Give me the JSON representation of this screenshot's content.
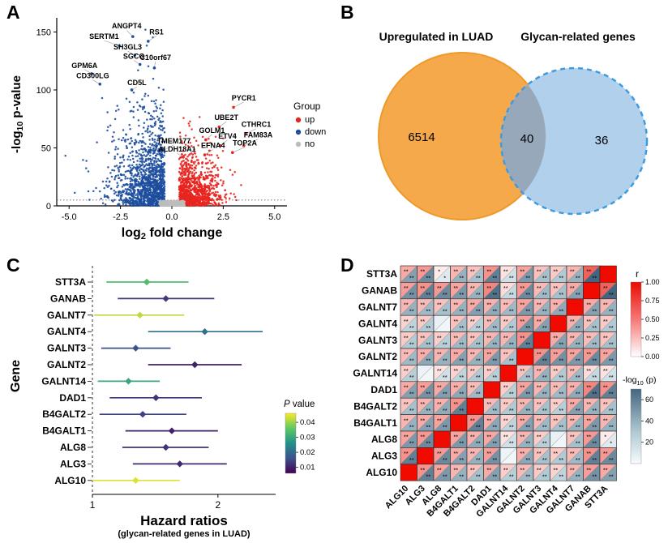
{
  "panel_labels": {
    "a": "A",
    "b": "B",
    "c": "C",
    "d": "D"
  },
  "chart_data": [
    {
      "id": "A",
      "type": "scatter",
      "subtype": "volcano",
      "xlabel": {
        "pre": "log",
        "sub": "2",
        "post": " fold change"
      },
      "ylabel": {
        "pre": "-log",
        "sub": "10",
        "post": " p-value"
      },
      "xlim": [
        -5.6,
        5.6
      ],
      "ylim": [
        0,
        158
      ],
      "x_ticks": [
        {
          "v": -5,
          "label": "-5.0"
        },
        {
          "v": -2.5,
          "label": "-2.5"
        },
        {
          "v": 0,
          "label": "0.0"
        },
        {
          "v": 2.5,
          "label": "2.5"
        },
        {
          "v": 5,
          "label": "5.0"
        }
      ],
      "y_ticks": [
        0,
        50,
        100,
        150
      ],
      "threshold_y": 5,
      "legend": {
        "title": "Group",
        "items": [
          {
            "label": "up",
            "color": "#E8251F"
          },
          {
            "label": "down",
            "color": "#1D4E9E"
          },
          {
            "label": "no",
            "color": "#BDBDBD"
          }
        ]
      },
      "colors": {
        "up": "#E8251F",
        "down": "#1D4E9E",
        "no": "#BDBDBD"
      },
      "generator": {
        "seed": 1337,
        "n_down": 1400,
        "n_up": 1050,
        "n_no": 380
      },
      "labeled_genes": [
        {
          "name": "ANGPT4",
          "x": -1.9,
          "y": 146,
          "lx": -2.2,
          "ly": 153,
          "group": "down"
        },
        {
          "name": "RS1",
          "x": -1.15,
          "y": 142,
          "lx": -0.75,
          "ly": 148,
          "group": "down"
        },
        {
          "name": "SERTM1",
          "x": -2.55,
          "y": 138,
          "lx": -3.3,
          "ly": 144,
          "group": "down"
        },
        {
          "name": "SH3GL3",
          "x": -1.8,
          "y": 130,
          "lx": -2.15,
          "ly": 135,
          "group": "down"
        },
        {
          "name": "SGCG",
          "x": -1.55,
          "y": 122,
          "lx": -1.85,
          "ly": 127,
          "group": "down"
        },
        {
          "name": "GPM6A",
          "x": -3.9,
          "y": 114,
          "lx": -4.25,
          "ly": 119,
          "group": "down"
        },
        {
          "name": "C10orf67",
          "x": -0.85,
          "y": 119,
          "lx": -0.8,
          "ly": 126,
          "group": "down"
        },
        {
          "name": "CD300LG",
          "x": -3.5,
          "y": 105,
          "lx": -3.85,
          "ly": 110,
          "group": "down"
        },
        {
          "name": "CD5L",
          "x": -1.95,
          "y": 100,
          "lx": -1.7,
          "ly": 104,
          "group": "down"
        },
        {
          "name": "PYCR1",
          "x": 3.0,
          "y": 85,
          "lx": 3.5,
          "ly": 91,
          "group": "up"
        },
        {
          "name": "UBE2T",
          "x": 2.3,
          "y": 68,
          "lx": 2.65,
          "ly": 74,
          "group": "up"
        },
        {
          "name": "CTHRC1",
          "x": 3.6,
          "y": 62,
          "lx": 4.1,
          "ly": 68,
          "group": "up"
        },
        {
          "name": "GOLM1",
          "x": 1.65,
          "y": 57,
          "lx": 1.95,
          "ly": 63,
          "group": "up"
        },
        {
          "name": "ETV4",
          "x": 2.35,
          "y": 52,
          "lx": 2.7,
          "ly": 58,
          "group": "up"
        },
        {
          "name": "FAM83A",
          "x": 3.5,
          "y": 52,
          "lx": 4.2,
          "ly": 59,
          "group": "up"
        },
        {
          "name": "TMEM177",
          "x": -0.4,
          "y": 48,
          "lx": 0.1,
          "ly": 54,
          "group": "down"
        },
        {
          "name": "ALDH18A1",
          "x": 0.55,
          "y": 42,
          "lx": 0.25,
          "ly": 47,
          "group": "up"
        },
        {
          "name": "EFNA4",
          "x": 1.6,
          "y": 44,
          "lx": 2.0,
          "ly": 50,
          "group": "up"
        },
        {
          "name": "TOP2A",
          "x": 2.95,
          "y": 46,
          "lx": 3.55,
          "ly": 52,
          "group": "up"
        }
      ]
    },
    {
      "id": "B",
      "type": "venn",
      "sets": [
        {
          "label": "Upregulated in LUAD",
          "count": "6514",
          "fill": "#F6A94B",
          "stroke": "#EE9A2B",
          "label_color": "#F59C1F",
          "dashed": false
        },
        {
          "label": "Glycan-related genes",
          "count": "36",
          "fill": "#ADCDEB",
          "stroke": "#3D9BE0",
          "label_color": "#3FA0E8",
          "dashed": true
        }
      ],
      "overlap": {
        "count": "40",
        "fill": "#97A8BB"
      }
    },
    {
      "id": "C",
      "type": "forest",
      "ylabel": "Gene",
      "xlabel": "Hazard ratios",
      "xsub": "(glycan-related genes in LUAD)",
      "xlim": [
        1,
        2.75
      ],
      "x_ticks": [
        1,
        2
      ],
      "ref_line": 1,
      "legend": {
        "title_italic": "P",
        "title_rest": " value",
        "ticks": [
          "0.04",
          "0.03",
          "0.02",
          "0.01"
        ],
        "domain": [
          0.006,
          0.046
        ]
      },
      "rows": [
        {
          "gene": "STT3A",
          "hr": 1.35,
          "lo": 1.08,
          "hi": 1.7,
          "p": 0.034
        },
        {
          "gene": "GANAB",
          "hr": 1.5,
          "lo": 1.15,
          "hi": 1.96,
          "p": 0.013
        },
        {
          "gene": "GALNT7",
          "hr": 1.3,
          "lo": 1.01,
          "hi": 1.66,
          "p": 0.042
        },
        {
          "gene": "GALNT4",
          "hr": 1.86,
          "lo": 1.36,
          "hi": 2.56,
          "p": 0.021
        },
        {
          "gene": "GALNT3",
          "hr": 1.27,
          "lo": 1.05,
          "hi": 1.54,
          "p": 0.016
        },
        {
          "gene": "GALNT2",
          "hr": 1.76,
          "lo": 1.36,
          "hi": 2.28,
          "p": 0.01
        },
        {
          "gene": "GALNT14",
          "hr": 1.22,
          "lo": 1.03,
          "hi": 1.45,
          "p": 0.03
        },
        {
          "gene": "DAD1",
          "hr": 1.42,
          "lo": 1.1,
          "hi": 1.83,
          "p": 0.012
        },
        {
          "gene": "B4GALT2",
          "hr": 1.32,
          "lo": 1.04,
          "hi": 1.68,
          "p": 0.014
        },
        {
          "gene": "B4GALT1",
          "hr": 1.55,
          "lo": 1.2,
          "hi": 2.0,
          "p": 0.01
        },
        {
          "gene": "ALG8",
          "hr": 1.5,
          "lo": 1.18,
          "hi": 1.9,
          "p": 0.012
        },
        {
          "gene": "ALG3",
          "hr": 1.62,
          "lo": 1.25,
          "hi": 2.1,
          "p": 0.011
        },
        {
          "gene": "ALG10",
          "hr": 1.27,
          "lo": 1.0,
          "hi": 1.62,
          "p": 0.044
        }
      ]
    },
    {
      "id": "D",
      "type": "heatmap",
      "subtype": "split-correlation",
      "genes_x": [
        "ALG10",
        "ALG3",
        "ALG8",
        "B4GALT1",
        "B4GALT2",
        "DAD1",
        "GALNT14",
        "GALNT2",
        "GALNT3",
        "GALNT4",
        "GALNT7",
        "GANAB",
        "STT3A"
      ],
      "genes_y": [
        "STT3A",
        "GANAB",
        "GALNT7",
        "GALNT4",
        "GALNT3",
        "GALNT2",
        "GALNT14",
        "DAD1",
        "B4GALT2",
        "B4GALT1",
        "ALG8",
        "ALG3",
        "ALG10"
      ],
      "r_legend": {
        "title": "r",
        "ticks": [
          "1.00",
          "0.75",
          "0.50",
          "0.25",
          "0.00"
        ],
        "domain": [
          0,
          1
        ]
      },
      "p_legend": {
        "title_pre": "-log",
        "title_sub": "10",
        "title_post": " (p)",
        "ticks": [
          60,
          40,
          20
        ],
        "domain": [
          0,
          70
        ]
      },
      "r_matrix": [
        [
          1.0,
          0.45,
          0.38,
          0.3,
          0.25,
          0.35,
          0.2,
          0.28,
          0.22,
          0.18,
          0.3,
          0.4,
          0.35
        ],
        [
          0.45,
          1.0,
          0.42,
          0.35,
          0.3,
          0.4,
          -0.05,
          0.33,
          0.25,
          0.22,
          0.28,
          0.45,
          0.42
        ],
        [
          0.38,
          0.42,
          1.0,
          0.38,
          0.32,
          0.36,
          0.12,
          0.3,
          0.2,
          -0.06,
          0.25,
          0.42,
          0.08
        ],
        [
          0.3,
          0.35,
          0.38,
          1.0,
          0.45,
          0.33,
          0.18,
          0.35,
          0.28,
          0.25,
          0.3,
          0.38,
          0.3
        ],
        [
          0.25,
          0.3,
          0.32,
          0.45,
          1.0,
          0.28,
          0.22,
          0.3,
          0.25,
          0.2,
          0.35,
          0.3,
          0.25
        ],
        [
          0.35,
          0.4,
          0.36,
          0.33,
          0.28,
          1.0,
          0.2,
          0.38,
          0.3,
          0.28,
          0.32,
          0.5,
          0.45
        ],
        [
          0.2,
          -0.05,
          0.12,
          0.18,
          0.22,
          0.2,
          1.0,
          0.25,
          0.3,
          0.22,
          0.28,
          0.15,
          0.12
        ],
        [
          0.28,
          0.33,
          0.3,
          0.35,
          0.3,
          0.38,
          0.25,
          1.0,
          0.45,
          0.4,
          0.38,
          0.42,
          0.38
        ],
        [
          0.22,
          0.25,
          0.2,
          0.28,
          0.25,
          0.3,
          0.3,
          0.45,
          1.0,
          0.35,
          0.3,
          0.28,
          0.25
        ],
        [
          0.18,
          0.22,
          -0.06,
          0.25,
          0.2,
          0.28,
          0.22,
          0.4,
          0.35,
          1.0,
          0.32,
          0.25,
          0.22
        ],
        [
          0.3,
          0.28,
          0.25,
          0.3,
          0.35,
          0.32,
          0.28,
          0.38,
          0.3,
          0.32,
          1.0,
          0.35,
          0.3
        ],
        [
          0.4,
          0.45,
          0.42,
          0.38,
          0.3,
          0.5,
          0.15,
          0.42,
          0.28,
          0.25,
          0.35,
          1.0,
          0.65
        ],
        [
          0.35,
          0.42,
          0.08,
          0.3,
          0.25,
          0.45,
          0.12,
          0.38,
          0.25,
          0.22,
          0.3,
          0.65,
          1.0
        ]
      ],
      "p_matrix": [
        [
          null,
          59,
          49,
          39,
          33,
          46,
          26,
          36,
          29,
          23,
          39,
          52,
          46
        ],
        [
          59,
          null,
          55,
          46,
          39,
          52,
          3,
          43,
          33,
          29,
          36,
          59,
          55
        ],
        [
          49,
          55,
          null,
          49,
          42,
          47,
          16,
          39,
          26,
          3,
          33,
          55,
          10
        ],
        [
          39,
          46,
          49,
          null,
          59,
          43,
          23,
          46,
          36,
          33,
          39,
          49,
          39
        ],
        [
          33,
          39,
          42,
          59,
          null,
          36,
          29,
          39,
          33,
          26,
          46,
          39,
          33
        ],
        [
          46,
          52,
          47,
          43,
          36,
          null,
          26,
          49,
          39,
          36,
          42,
          65,
          59
        ],
        [
          26,
          3,
          16,
          23,
          29,
          26,
          null,
          33,
          39,
          29,
          36,
          20,
          16
        ],
        [
          36,
          43,
          39,
          46,
          39,
          49,
          33,
          null,
          59,
          52,
          49,
          55,
          49
        ],
        [
          29,
          33,
          26,
          36,
          33,
          39,
          39,
          59,
          null,
          46,
          39,
          36,
          33
        ],
        [
          23,
          29,
          3,
          33,
          26,
          36,
          29,
          52,
          46,
          null,
          42,
          33,
          29
        ],
        [
          39,
          36,
          33,
          39,
          46,
          42,
          36,
          49,
          39,
          42,
          null,
          46,
          39
        ],
        [
          52,
          59,
          55,
          49,
          39,
          65,
          20,
          55,
          36,
          33,
          46,
          null,
          70
        ],
        [
          46,
          55,
          10,
          39,
          33,
          59,
          16,
          49,
          33,
          29,
          39,
          70,
          null
        ]
      ]
    }
  ]
}
